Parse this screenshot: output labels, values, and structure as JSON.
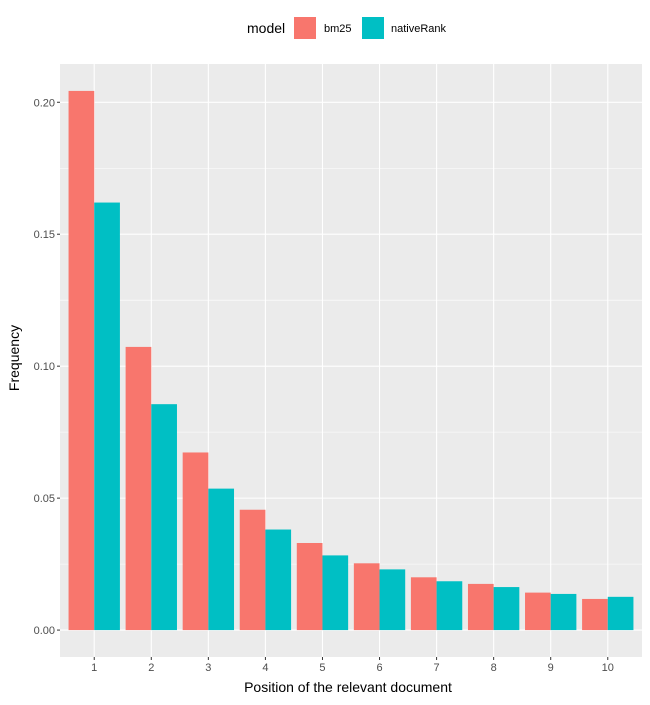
{
  "chart_data": {
    "type": "bar",
    "xlabel": "Position of the relevant document",
    "ylabel": "Frequency",
    "legend": {
      "title": "model",
      "position": "top"
    },
    "categories": [
      "1",
      "2",
      "3",
      "4",
      "5",
      "6",
      "7",
      "8",
      "9",
      "10"
    ],
    "series": [
      {
        "name": "bm25",
        "color": "#F8766D",
        "values": [
          0.2043,
          0.1073,
          0.0673,
          0.0456,
          0.033,
          0.0253,
          0.02,
          0.0175,
          0.0142,
          0.0118
        ]
      },
      {
        "name": "nativeRank",
        "color": "#00BFC4",
        "values": [
          0.162,
          0.0856,
          0.0536,
          0.0381,
          0.0283,
          0.023,
          0.0185,
          0.0163,
          0.0137,
          0.0126
        ]
      }
    ],
    "yticks": [
      "0.00",
      "0.05",
      "0.10",
      "0.15",
      "0.20"
    ],
    "ylim": [
      -0.0102,
      0.2145
    ],
    "grid": true,
    "panel_color": "#EBEBEB"
  }
}
